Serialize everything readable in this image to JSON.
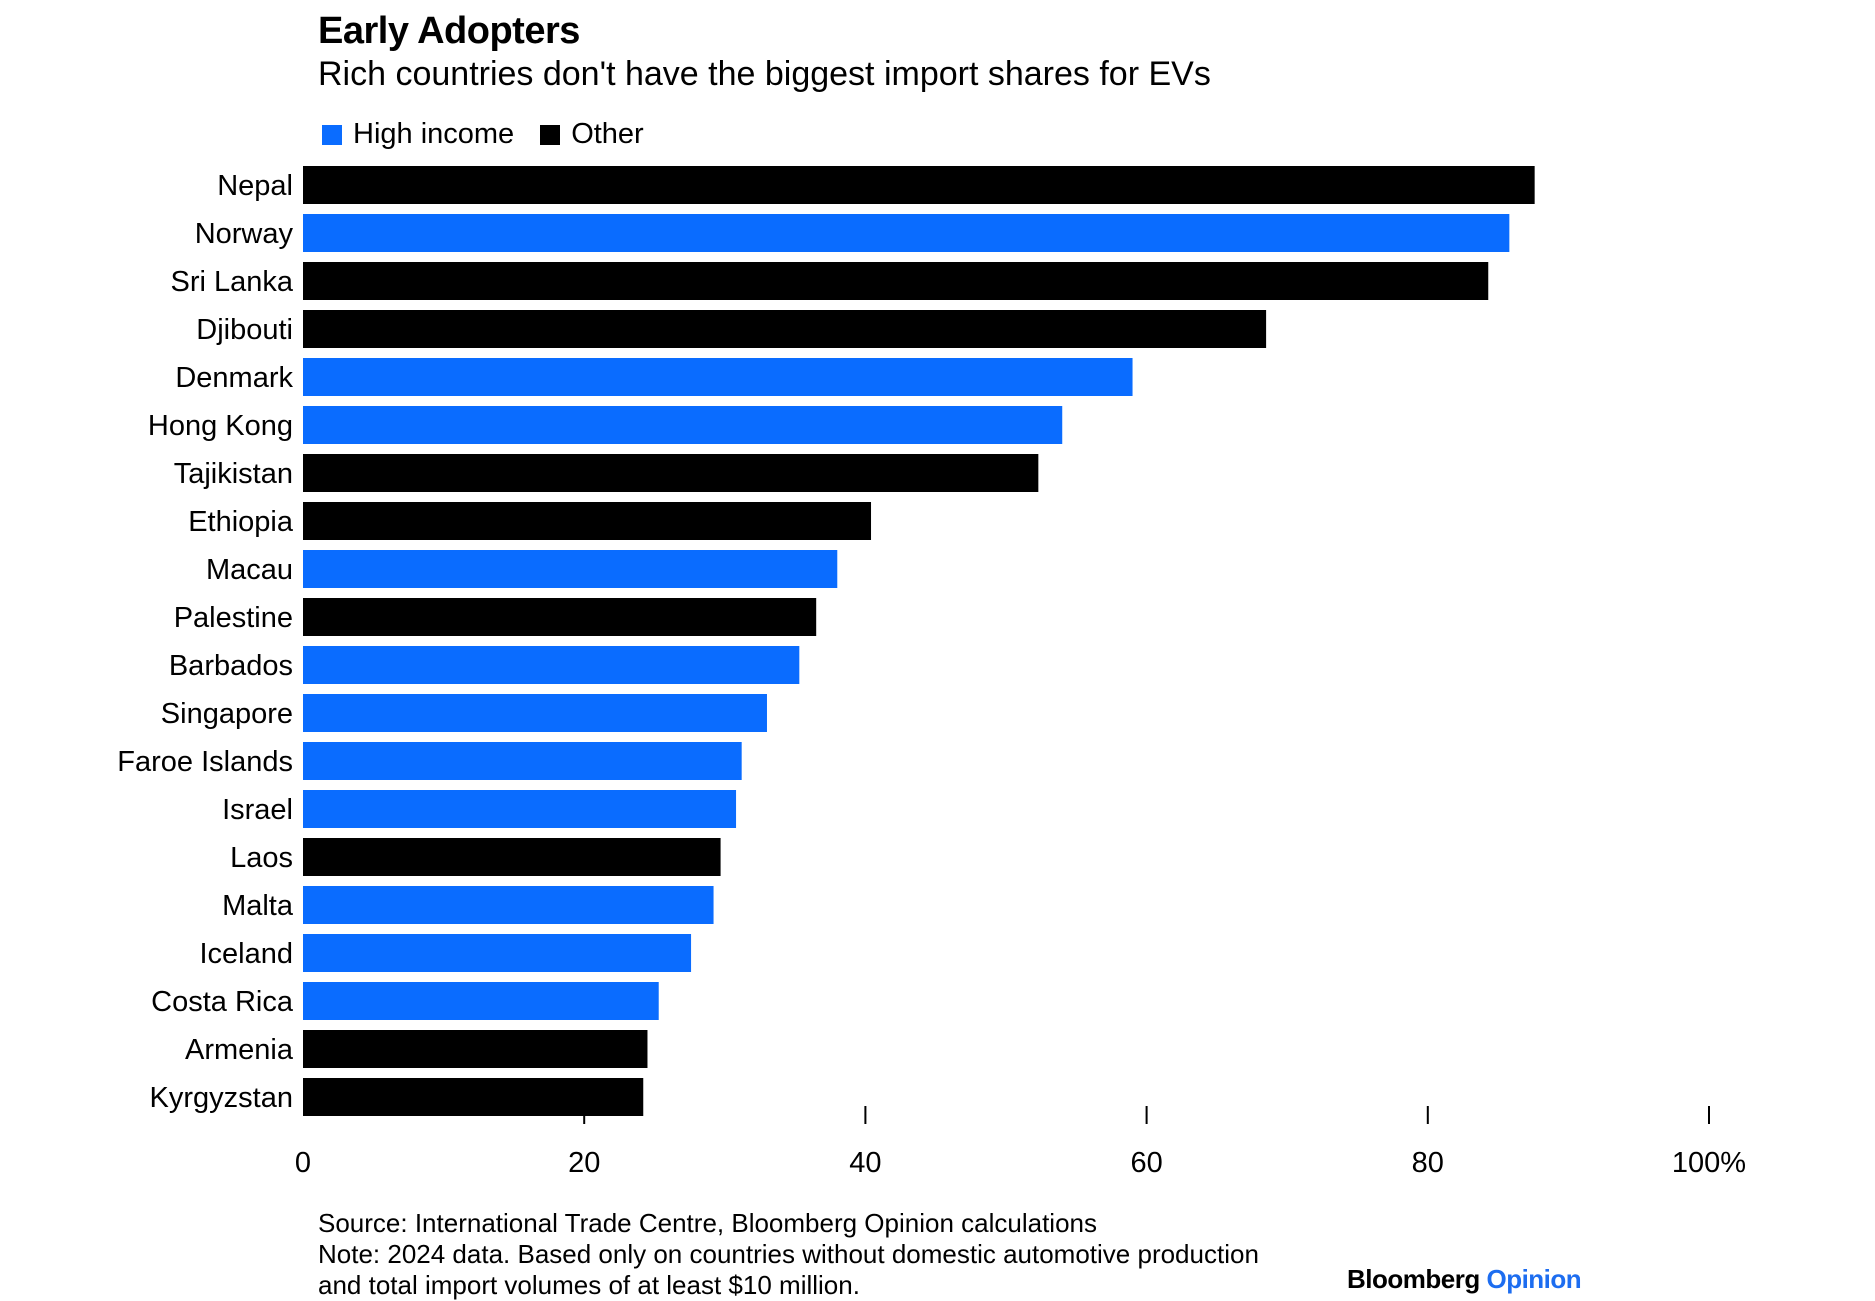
{
  "chart_data": {
    "type": "bar",
    "orientation": "horizontal",
    "title": "Early Adopters",
    "subtitle": "Rich countries don't have the biggest import shares for EVs",
    "legend": [
      {
        "name": "High income",
        "color": "#0a6cff"
      },
      {
        "name": "Other",
        "color": "#000000"
      }
    ],
    "categories": [
      "Nepal",
      "Norway",
      "Sri Lanka",
      "Djibouti",
      "Denmark",
      "Hong Kong",
      "Tajikistan",
      "Ethiopia",
      "Macau",
      "Palestine",
      "Barbados",
      "Singapore",
      "Faroe Islands",
      "Israel",
      "Laos",
      "Malta",
      "Iceland",
      "Costa Rica",
      "Armenia",
      "Kyrgyzstan"
    ],
    "values": [
      87.6,
      85.8,
      84.3,
      68.5,
      59.0,
      54.0,
      52.3,
      40.4,
      38.0,
      36.5,
      35.3,
      33.0,
      31.2,
      30.8,
      29.7,
      29.2,
      27.6,
      25.3,
      24.5,
      24.2
    ],
    "groups": [
      "Other",
      "High income",
      "Other",
      "Other",
      "High income",
      "High income",
      "Other",
      "Other",
      "High income",
      "Other",
      "High income",
      "High income",
      "High income",
      "High income",
      "Other",
      "High income",
      "High income",
      "High income",
      "Other",
      "Other"
    ],
    "xlim": [
      0,
      100
    ],
    "xticks": [
      0,
      20,
      40,
      60,
      80,
      100
    ],
    "xtick_labels": [
      "0",
      "20",
      "40",
      "60",
      "80",
      "100%"
    ],
    "xlabel": "",
    "ylabel": ""
  },
  "footer": {
    "source": "Source: International Trade Centre, Bloomberg Opinion calculations",
    "note_line1": "Note: 2024 data. Based only on countries without domestic automotive production",
    "note_line2": "and total import volumes of at least $10 million."
  },
  "brand": {
    "name": "Bloomberg",
    "suffix": "Opinion"
  }
}
